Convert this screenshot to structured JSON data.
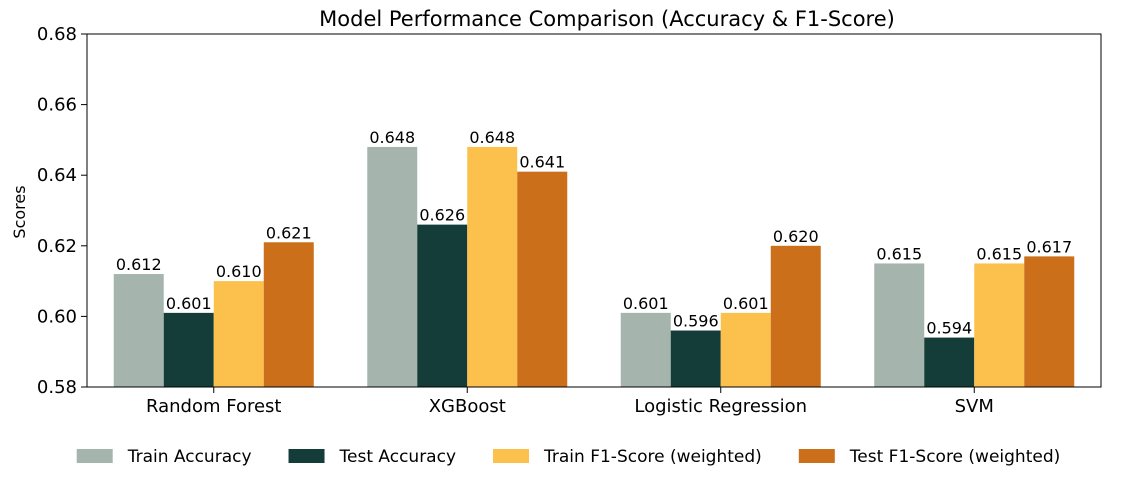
{
  "chart_data": {
    "type": "bar",
    "title": "Model Performance Comparison (Accuracy & F1-Score)",
    "xlabel": "",
    "ylabel": "Scores",
    "ylim": [
      0.58,
      0.68
    ],
    "yticks": [
      "0.58",
      "0.60",
      "0.62",
      "0.64",
      "0.66",
      "0.68"
    ],
    "categories": [
      "Random Forest",
      "XGBoost",
      "Logistic Regression",
      "SVM"
    ],
    "series": [
      {
        "name": "Train Accuracy",
        "color": "#a5b5ae",
        "values": [
          0.612,
          0.648,
          0.601,
          0.615
        ],
        "labels": [
          "0.612",
          "0.648",
          "0.601",
          "0.615"
        ]
      },
      {
        "name": "Test Accuracy",
        "color": "#143d3a",
        "values": [
          0.601,
          0.626,
          0.596,
          0.594
        ],
        "labels": [
          "0.601",
          "0.626",
          "0.596",
          "0.594"
        ]
      },
      {
        "name": "Train F1-Score (weighted)",
        "color": "#fcc14c",
        "values": [
          0.61,
          0.648,
          0.601,
          0.615
        ],
        "labels": [
          "0.610",
          "0.648",
          "0.601",
          "0.615"
        ]
      },
      {
        "name": "Test F1-Score (weighted)",
        "color": "#cb6f1a",
        "values": [
          0.621,
          0.641,
          0.62,
          0.617
        ],
        "labels": [
          "0.621",
          "0.641",
          "0.620",
          "0.617"
        ]
      }
    ],
    "grid": false,
    "legend_position": "bottom"
  }
}
